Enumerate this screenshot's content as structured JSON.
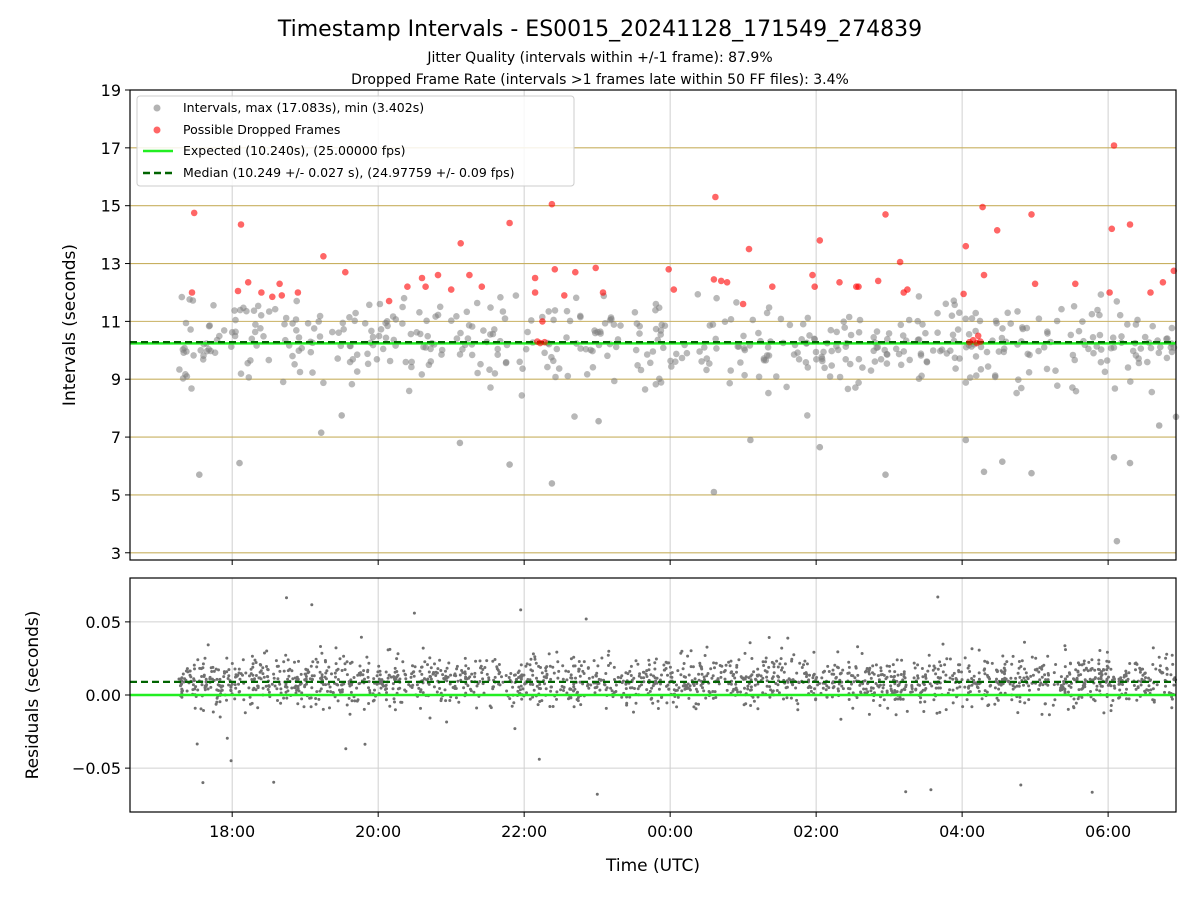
{
  "title": "Timestamp Intervals - ES0015_20241128_171549_274839",
  "subtitle_1": "Jitter Quality (intervals within +/-1 frame): 87.9%",
  "subtitle_2": "Dropped Frame Rate (intervals >1 frames late within 50 FF files): 3.4%",
  "colors": {
    "intervals": "#808080",
    "dropped": "#ff0000",
    "expected": "#22ee22",
    "median": "#006400",
    "hgrid_top": "#c8b060",
    "grid": "#d0d0d0"
  },
  "chart_data": [
    {
      "type": "scatter",
      "ylabel": "Intervals (seconds)",
      "xlabel": "",
      "x_range_hours": [
        16.6,
        30.93
      ],
      "ylim": [
        2.75,
        19
      ],
      "yticks": [
        "3",
        "5",
        "7",
        "9",
        "11",
        "13",
        "15",
        "17",
        "19"
      ],
      "ytick_values": [
        3,
        5,
        7,
        9,
        11,
        13,
        15,
        17,
        19
      ],
      "xtick_values_hours": [
        18,
        20,
        22,
        24,
        26,
        28,
        30
      ],
      "grid": true,
      "legend_placement": "upper-left",
      "legend": {
        "intervals": "Intervals, max (17.083s), min (3.402s)",
        "dropped": "Possible Dropped Frames",
        "expected": "Expected (10.240s), (25.00000 fps)",
        "median": "Median (10.249 +/- 0.027 s), (24.97759 +/- 0.09 fps)"
      },
      "expected_value": 10.24,
      "median_value": 10.249,
      "series_intervals_max": 17.083,
      "series_intervals_min": 3.402,
      "dropped_frames": [
        [
          17.48,
          14.75
        ],
        [
          17.45,
          12.0
        ],
        [
          18.08,
          12.05
        ],
        [
          18.12,
          14.35
        ],
        [
          18.22,
          12.35
        ],
        [
          18.4,
          12.0
        ],
        [
          18.55,
          11.85
        ],
        [
          18.65,
          12.3
        ],
        [
          18.68,
          11.9
        ],
        [
          18.9,
          12.0
        ],
        [
          19.25,
          13.25
        ],
        [
          19.55,
          12.7
        ],
        [
          20.15,
          11.7
        ],
        [
          20.4,
          12.2
        ],
        [
          20.6,
          12.5
        ],
        [
          20.65,
          12.2
        ],
        [
          20.82,
          12.6
        ],
        [
          21.0,
          12.1
        ],
        [
          21.13,
          13.7
        ],
        [
          21.25,
          12.6
        ],
        [
          21.42,
          12.2
        ],
        [
          21.8,
          14.4
        ],
        [
          22.15,
          12.5
        ],
        [
          22.15,
          12.0
        ],
        [
          22.38,
          15.05
        ],
        [
          22.42,
          12.8
        ],
        [
          22.55,
          11.9
        ],
        [
          22.7,
          12.7
        ],
        [
          22.98,
          12.85
        ],
        [
          23.08,
          12.0
        ],
        [
          23.98,
          12.8
        ],
        [
          24.05,
          12.1
        ],
        [
          24.6,
          12.45
        ],
        [
          24.62,
          15.3
        ],
        [
          24.7,
          12.4
        ],
        [
          24.78,
          12.35
        ],
        [
          25.0,
          11.6
        ],
        [
          25.08,
          13.5
        ],
        [
          25.4,
          12.2
        ],
        [
          25.95,
          12.6
        ],
        [
          25.98,
          12.2
        ],
        [
          26.05,
          13.8
        ],
        [
          26.32,
          12.35
        ],
        [
          26.55,
          12.2
        ],
        [
          26.58,
          12.2
        ],
        [
          26.85,
          12.4
        ],
        [
          26.95,
          14.7
        ],
        [
          27.15,
          13.05
        ],
        [
          27.2,
          12.0
        ],
        [
          27.25,
          12.1
        ],
        [
          28.05,
          13.6
        ],
        [
          28.02,
          11.95
        ],
        [
          28.3,
          12.6
        ],
        [
          28.28,
          14.95
        ],
        [
          28.48,
          14.15
        ],
        [
          28.95,
          14.7
        ],
        [
          29.0,
          12.3
        ],
        [
          29.55,
          12.3
        ],
        [
          30.02,
          12.0
        ],
        [
          30.05,
          14.2
        ],
        [
          30.08,
          17.08
        ],
        [
          30.3,
          14.35
        ],
        [
          30.58,
          12.0
        ],
        [
          30.75,
          12.35
        ],
        [
          30.9,
          12.75
        ],
        [
          22.18,
          10.3
        ],
        [
          22.22,
          10.25
        ],
        [
          22.28,
          10.28
        ],
        [
          22.25,
          11.0
        ],
        [
          28.1,
          10.28
        ],
        [
          28.15,
          10.35
        ],
        [
          28.2,
          10.25
        ],
        [
          28.22,
          10.5
        ],
        [
          28.25,
          10.3
        ]
      ]
    },
    {
      "type": "scatter",
      "ylabel": "Residuals (seconds)",
      "xlabel": "Time (UTC)",
      "x_range_hours": [
        16.6,
        30.93
      ],
      "ylim": [
        -0.08,
        0.08
      ],
      "yticks": [
        "−0.05",
        "0.00",
        "0.05"
      ],
      "ytick_values": [
        -0.05,
        0.0,
        0.05
      ],
      "xticks": [
        "18:00",
        "20:00",
        "22:00",
        "00:00",
        "02:00",
        "04:00",
        "06:00"
      ],
      "xtick_values_hours": [
        18,
        20,
        22,
        24,
        26,
        28,
        30
      ],
      "grid": true,
      "expected_value": 0.0,
      "median_value": 0.009
    }
  ]
}
